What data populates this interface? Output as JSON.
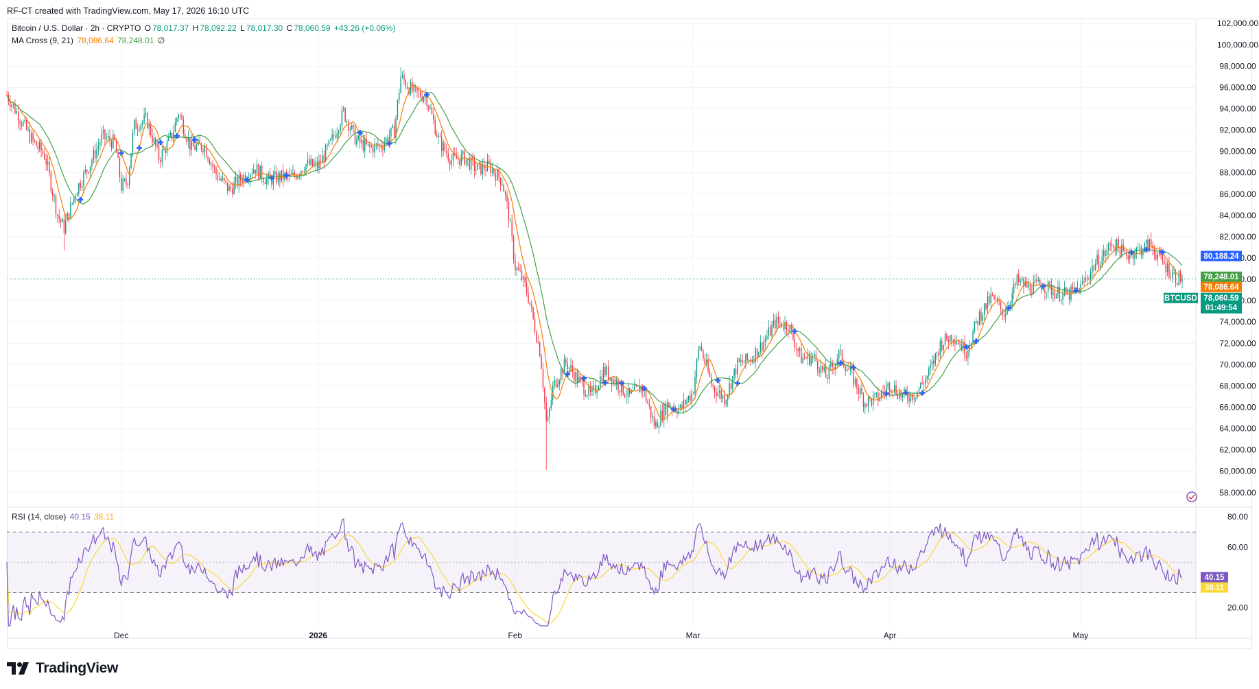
{
  "header": {
    "credit": "RF-CT created with TradingView.com, May 17, 2026 16:10 UTC"
  },
  "legend": {
    "symbol_line": "Bitcoin / U.S. Dollar · 2h · CRYPTO",
    "open_label": "O",
    "open": "78,017.37",
    "high_label": "H",
    "high": "78,092.22",
    "low_label": "L",
    "low": "78,017.30",
    "close_label": "C",
    "close": "78,060.59",
    "change": "+43.26 (+0.06%)",
    "ma_label": "MA Cross (9, 21)",
    "ma_fast": "78,086.64",
    "ma_slow": "78,248.01",
    "ma_extra": "∅",
    "rsi_label": "RSI (14, close)",
    "rsi_value": "40.15",
    "rsi_ma": "38.11"
  },
  "footer": {
    "brand": "TradingView"
  },
  "colors": {
    "up": "#089981",
    "down": "#f23645",
    "ma_fast": "#f57c00",
    "ma_slow": "#43a047",
    "rsi": "#7e57c2",
    "rsi_ma": "#fdd835",
    "cross": "#2962ff",
    "grid": "#f0f3fa"
  },
  "chart_data": [
    {
      "type": "candlestick",
      "title": "Bitcoin / U.S. Dollar · 2h · CRYPTO",
      "x_tick_labels": [
        "Dec",
        "2026",
        "Feb",
        "Mar",
        "Apr",
        "May"
      ],
      "y_ticks": [
        "102,000.00",
        "100,000.00",
        "98,000.00",
        "96,000.00",
        "94,000.00",
        "92,000.00",
        "90,000.00",
        "88,000.00",
        "86,000.00",
        "84,000.00",
        "82,000.00",
        "80,000.00",
        "78,000.00",
        "76,000.00",
        "74,000.00",
        "72,000.00",
        "70,000.00",
        "68,000.00",
        "66,000.00",
        "64,000.00",
        "62,000.00",
        "60,000.00",
        "58,000.00"
      ],
      "ylim": [
        56700,
        102400
      ],
      "x_dates": [
        "2025-11-13",
        "2026-05-17"
      ],
      "close_path": [
        [
          "2025-11-13",
          95300
        ],
        [
          "2025-11-15",
          93200
        ],
        [
          "2025-11-17",
          91000
        ],
        [
          "2025-11-19",
          89600
        ],
        [
          "2025-11-21",
          84000
        ],
        [
          "2025-11-22",
          82800
        ],
        [
          "2025-11-24",
          86500
        ],
        [
          "2025-11-26",
          88700
        ],
        [
          "2025-11-28",
          91400
        ],
        [
          "2025-11-30",
          90800
        ],
        [
          "2025-12-01",
          86700
        ],
        [
          "2025-12-02",
          87200
        ],
        [
          "2025-12-03",
          92400
        ],
        [
          "2025-12-05",
          93000
        ],
        [
          "2025-12-07",
          89300
        ],
        [
          "2025-12-09",
          91500
        ],
        [
          "2025-12-10",
          93700
        ],
        [
          "2025-12-12",
          90300
        ],
        [
          "2025-12-14",
          90600
        ],
        [
          "2025-12-16",
          87800
        ],
        [
          "2025-12-18",
          86400
        ],
        [
          "2025-12-20",
          87500
        ],
        [
          "2025-12-22",
          88500
        ],
        [
          "2025-12-24",
          87300
        ],
        [
          "2025-12-26",
          87600
        ],
        [
          "2025-12-28",
          87600
        ],
        [
          "2025-12-30",
          88800
        ],
        [
          "2026-01-01",
          88600
        ],
        [
          "2026-01-03",
          90800
        ],
        [
          "2026-01-05",
          93700
        ],
        [
          "2026-01-07",
          91000
        ],
        [
          "2026-01-09",
          90300
        ],
        [
          "2026-01-11",
          90600
        ],
        [
          "2026-01-13",
          92000
        ],
        [
          "2026-01-14",
          97000
        ],
        [
          "2026-01-16",
          95500
        ],
        [
          "2026-01-18",
          95200
        ],
        [
          "2026-01-20",
          91000
        ],
        [
          "2026-01-22",
          89200
        ],
        [
          "2026-01-24",
          89400
        ],
        [
          "2026-01-26",
          88300
        ],
        [
          "2026-01-28",
          88600
        ],
        [
          "2026-01-30",
          87200
        ],
        [
          "2026-01-31",
          84000
        ],
        [
          "2026-02-01",
          79200
        ],
        [
          "2026-02-02",
          78200
        ],
        [
          "2026-02-03",
          76600
        ],
        [
          "2026-02-05",
          71000
        ],
        [
          "2026-02-06",
          64000
        ],
        [
          "2026-02-07",
          68000
        ],
        [
          "2026-02-09",
          70200
        ],
        [
          "2026-02-11",
          68500
        ],
        [
          "2026-02-13",
          67000
        ],
        [
          "2026-02-15",
          69500
        ],
        [
          "2026-02-17",
          68300
        ],
        [
          "2026-02-19",
          67000
        ],
        [
          "2026-02-21",
          68000
        ],
        [
          "2026-02-23",
          64200
        ],
        [
          "2026-02-25",
          66300
        ],
        [
          "2026-02-27",
          65800
        ],
        [
          "2026-03-01",
          67500
        ],
        [
          "2026-03-02",
          72000
        ],
        [
          "2026-03-04",
          68000
        ],
        [
          "2026-03-06",
          66800
        ],
        [
          "2026-03-08",
          70000
        ],
        [
          "2026-03-10",
          70500
        ],
        [
          "2026-03-12",
          72000
        ],
        [
          "2026-03-14",
          74000
        ],
        [
          "2026-03-16",
          73700
        ],
        [
          "2026-03-18",
          70600
        ],
        [
          "2026-03-20",
          70700
        ],
        [
          "2026-03-22",
          68800
        ],
        [
          "2026-03-24",
          71000
        ],
        [
          "2026-03-26",
          69000
        ],
        [
          "2026-03-28",
          66500
        ],
        [
          "2026-03-30",
          66800
        ],
        [
          "2026-04-01",
          68200
        ],
        [
          "2026-04-03",
          67000
        ],
        [
          "2026-04-05",
          67300
        ],
        [
          "2026-04-07",
          69000
        ],
        [
          "2026-04-09",
          72000
        ],
        [
          "2026-04-11",
          72800
        ],
        [
          "2026-04-13",
          71200
        ],
        [
          "2026-04-15",
          74500
        ],
        [
          "2026-04-17",
          76300
        ],
        [
          "2026-04-19",
          74800
        ],
        [
          "2026-04-21",
          77800
        ],
        [
          "2026-04-23",
          77200
        ],
        [
          "2026-04-25",
          77500
        ],
        [
          "2026-04-27",
          76800
        ],
        [
          "2026-04-29",
          76500
        ],
        [
          "2026-05-01",
          77200
        ],
        [
          "2026-05-03",
          79200
        ],
        [
          "2026-05-05",
          80500
        ],
        [
          "2026-05-06",
          81500
        ],
        [
          "2026-05-08",
          80300
        ],
        [
          "2026-05-10",
          80700
        ],
        [
          "2026-05-12",
          81300
        ],
        [
          "2026-05-14",
          79500
        ],
        [
          "2026-05-16",
          78200
        ],
        [
          "2026-05-17",
          78060
        ]
      ],
      "low_extremes": [
        [
          "2026-02-06",
          60100
        ],
        [
          "2025-11-22",
          80700
        ]
      ],
      "high_extremes": [
        [
          "2026-01-14",
          97900
        ]
      ],
      "last_price": {
        "label": "BTCUSD",
        "value": "78,060.59",
        "countdown": "01:49:54",
        "y": 78060.59
      },
      "price_tags": [
        {
          "value": "80,188.24",
          "y": 80188.24,
          "color": "#2962ff"
        },
        {
          "value": "78,248.01",
          "y": 78248.01,
          "color": "#43a047"
        },
        {
          "value": "78,086.64",
          "y": 78086.64,
          "color": "#f57c00"
        }
      ],
      "series": [
        {
          "name": "MA Cross (9, 21) fast",
          "value": 78086.64
        },
        {
          "name": "MA Cross (9, 21) slow",
          "value": 78248.01
        }
      ]
    },
    {
      "type": "line",
      "title": "RSI (14, close)",
      "y_ticks": [
        "80.00",
        "60.00",
        "20.00"
      ],
      "ylim": [
        8,
        86
      ],
      "bands": [
        30,
        50,
        70
      ],
      "series": [
        {
          "name": "RSI (14, close)",
          "last": 40.15
        },
        {
          "name": "RSI-based MA",
          "last": 38.11
        }
      ],
      "tags": [
        {
          "value": "40.15",
          "y": 40.15,
          "color": "#7e57c2"
        },
        {
          "value": "38.11",
          "y": 38.11,
          "color": "#fdd835"
        }
      ]
    }
  ]
}
